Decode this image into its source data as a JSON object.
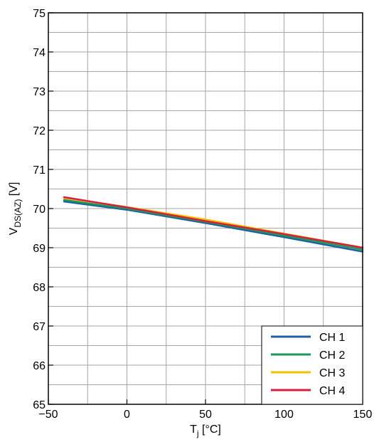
{
  "chart_data": {
    "type": "line",
    "xlabel": {
      "main": "T",
      "sub": "j",
      "unit": " [°C]"
    },
    "ylabel": {
      "main": "V",
      "sub": "DS(AZ)",
      "unit": " [V]"
    },
    "xlim": [
      -50,
      150
    ],
    "ylim": [
      65,
      75
    ],
    "x_ticks": [
      -50,
      0,
      50,
      100,
      150
    ],
    "x_tick_labels": [
      "−50",
      "0",
      "50",
      "100",
      "150"
    ],
    "y_ticks": [
      65,
      66,
      67,
      68,
      69,
      70,
      71,
      72,
      73,
      74,
      75
    ],
    "y_tick_labels": [
      "65",
      "66",
      "67",
      "68",
      "69",
      "70",
      "71",
      "72",
      "73",
      "74",
      "75"
    ],
    "grid": true,
    "legend_position": "bottom-right",
    "series": [
      {
        "name": "CH 1",
        "color": "#1f5fa0",
        "x": [
          -40,
          0,
          50,
          100,
          150
        ],
        "y": [
          70.18,
          69.97,
          69.63,
          69.27,
          68.9
        ]
      },
      {
        "name": "CH 2",
        "color": "#1a9a5a",
        "x": [
          -40,
          0,
          50,
          100,
          150
        ],
        "y": [
          70.22,
          70.0,
          69.66,
          69.31,
          68.95
        ]
      },
      {
        "name": "CH 3",
        "color": "#f2c200",
        "x": [
          -40,
          0,
          50,
          100,
          150
        ],
        "y": [
          70.27,
          70.04,
          69.72,
          69.36,
          69.0
        ]
      },
      {
        "name": "CH 4",
        "color": "#d81e3c",
        "x": [
          -40,
          0,
          50,
          100,
          150
        ],
        "y": [
          70.29,
          70.03,
          69.68,
          69.35,
          69.0
        ]
      }
    ]
  }
}
